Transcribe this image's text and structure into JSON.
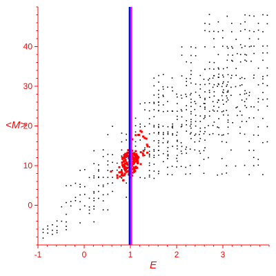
{
  "chart_data": {
    "type": "scatter",
    "title": "",
    "xlabel": "E",
    "ylabel": "<M>",
    "xlim": [
      -1,
      4
    ],
    "ylim": [
      -10,
      50
    ],
    "x_ticks": [
      -1,
      0,
      1,
      2,
      3
    ],
    "y_ticks": [
      0,
      10,
      20,
      30,
      40
    ],
    "grid": false,
    "legend": "none",
    "axis_color": "#ff0000",
    "vertical_line": {
      "x": 1.0,
      "colors": [
        "#0000ff",
        "#ff00ff"
      ]
    },
    "series": [
      {
        "color": "#000000",
        "marker": "dot",
        "bands": [
          {
            "x0": -0.9,
            "x1": -0.6,
            "y0": -8,
            "y1": -6
          },
          {
            "x0": -0.8,
            "x1": -0.4,
            "y0": -6,
            "y1": -4
          },
          {
            "x0": -0.6,
            "x1": 0.2,
            "y0": -4,
            "y1": 0
          },
          {
            "x0": -0.4,
            "x1": 0.6,
            "y0": -1,
            "y1": 5
          },
          {
            "x0": -0.2,
            "x1": 0.9,
            "y0": 2,
            "y1": 9
          },
          {
            "x0": 0.2,
            "x1": 1.6,
            "y0": 7,
            "y1": 14
          },
          {
            "x0": 0.5,
            "x1": 2.0,
            "y0": 11,
            "y1": 20
          },
          {
            "x0": 1.1,
            "x1": 2.6,
            "y0": 13,
            "y1": 26
          },
          {
            "x0": 1.6,
            "x1": 3.1,
            "y0": 18,
            "y1": 33
          },
          {
            "x0": 2.1,
            "x1": 3.6,
            "y0": 21,
            "y1": 40
          },
          {
            "x0": 2.6,
            "x1": 3.95,
            "y0": 25,
            "y1": 48
          },
          {
            "x0": 1.4,
            "x1": 3.95,
            "y0": 8,
            "y1": 32
          }
        ]
      },
      {
        "color": "#ff0000",
        "marker": "dot",
        "clusters": [
          {
            "cx": 1.0,
            "cy": 11.0,
            "rx": 0.18,
            "ry": 3.0,
            "n": 140
          },
          {
            "cx": 1.15,
            "cy": 14.5,
            "rx": 0.25,
            "ry": 4.5,
            "n": 25
          },
          {
            "cx": 0.8,
            "cy": 8.0,
            "rx": 0.25,
            "ry": 2.0,
            "n": 20
          }
        ]
      }
    ]
  }
}
